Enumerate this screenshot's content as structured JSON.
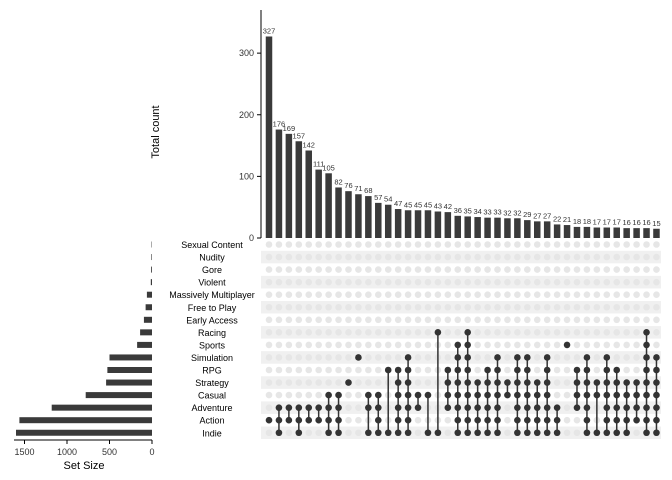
{
  "chart_data": {
    "type": "bar",
    "subtype": "upset",
    "title": "",
    "ylabel": "Total count",
    "xlabel_sets": "Set Size",
    "intersection_yticks": [
      0,
      100,
      200,
      300
    ],
    "intersection_ylim": [
      0,
      370
    ],
    "set_size_xticks": [
      1500,
      1000,
      500,
      0
    ],
    "set_size_xlim": [
      0,
      1600
    ],
    "colors": {
      "bar": "#3a3a3a",
      "dot_on": "#333333",
      "dot_off": "#e6e6e6",
      "stripe": "#f0f0f0",
      "axis": "#000000"
    },
    "sets": [
      {
        "name": "Sexual Content",
        "size": 5
      },
      {
        "name": "Nudity",
        "size": 7
      },
      {
        "name": "Gore",
        "size": 10
      },
      {
        "name": "Violent",
        "size": 14
      },
      {
        "name": "Massively Multiplayer",
        "size": 60
      },
      {
        "name": "Free to Play",
        "size": 75
      },
      {
        "name": "Early Access",
        "size": 95
      },
      {
        "name": "Racing",
        "size": 140
      },
      {
        "name": "Sports",
        "size": 175
      },
      {
        "name": "Simulation",
        "size": 500
      },
      {
        "name": "RPG",
        "size": 525
      },
      {
        "name": "Strategy",
        "size": 540
      },
      {
        "name": "Casual",
        "size": 780
      },
      {
        "name": "Adventure",
        "size": 1180
      },
      {
        "name": "Action",
        "size": 1560
      },
      {
        "name": "Indie",
        "size": 1600
      }
    ],
    "intersections": [
      {
        "value": 327,
        "sets": [
          "Action"
        ]
      },
      {
        "value": 176,
        "sets": [
          "Indie",
          "Action",
          "Adventure"
        ]
      },
      {
        "value": 169,
        "sets": [
          "Action",
          "Adventure"
        ]
      },
      {
        "value": 157,
        "sets": [
          "Indie",
          "Action",
          "Adventure"
        ]
      },
      {
        "value": 142,
        "sets": [
          "Action",
          "Adventure"
        ]
      },
      {
        "value": 111,
        "sets": [
          "Action",
          "Adventure"
        ]
      },
      {
        "value": 105,
        "sets": [
          "Indie",
          "Action",
          "Adventure",
          "Casual"
        ]
      },
      {
        "value": 82,
        "sets": [
          "Indie",
          "Action",
          "Adventure",
          "Casual"
        ]
      },
      {
        "value": 76,
        "sets": [
          "Strategy"
        ]
      },
      {
        "value": 71,
        "sets": [
          "Simulation"
        ]
      },
      {
        "value": 68,
        "sets": [
          "Indie",
          "Adventure",
          "Casual"
        ]
      },
      {
        "value": 57,
        "sets": [
          "Indie",
          "Action",
          "Adventure",
          "Casual"
        ]
      },
      {
        "value": 54,
        "sets": [
          "Indie",
          "RPG"
        ]
      },
      {
        "value": 47,
        "sets": [
          "Indie",
          "Action",
          "Adventure",
          "Casual",
          "Strategy",
          "RPG"
        ]
      },
      {
        "value": 45,
        "sets": [
          "Indie",
          "Action",
          "Adventure",
          "Casual",
          "Strategy",
          "RPG",
          "Simulation"
        ]
      },
      {
        "value": 45,
        "sets": [
          "Casual",
          "Adventure"
        ]
      },
      {
        "value": 45,
        "sets": [
          "Indie",
          "Casual"
        ]
      },
      {
        "value": 43,
        "sets": [
          "Indie",
          "Racing"
        ]
      },
      {
        "value": 42,
        "sets": [
          "Strategy",
          "RPG",
          "Adventure",
          "Casual"
        ]
      },
      {
        "value": 36,
        "sets": [
          "Indie",
          "Action",
          "Adventure",
          "Casual",
          "Strategy",
          "RPG",
          "Simulation",
          "Sports"
        ]
      },
      {
        "value": 35,
        "sets": [
          "Indie",
          "Action",
          "Adventure",
          "Casual",
          "Strategy",
          "RPG",
          "Simulation",
          "Sports",
          "Racing"
        ]
      },
      {
        "value": 34,
        "sets": [
          "Indie",
          "Action",
          "Adventure",
          "Casual",
          "Strategy"
        ]
      },
      {
        "value": 33,
        "sets": [
          "Indie",
          "Action",
          "Adventure",
          "Casual",
          "Strategy",
          "RPG"
        ]
      },
      {
        "value": 33,
        "sets": [
          "Indie",
          "Action",
          "Adventure",
          "Casual",
          "Strategy",
          "RPG",
          "Simulation"
        ]
      },
      {
        "value": 32,
        "sets": [
          "Casual",
          "Strategy"
        ]
      },
      {
        "value": 32,
        "sets": [
          "Indie",
          "Action",
          "Adventure",
          "Casual",
          "Strategy",
          "RPG",
          "Simulation"
        ]
      },
      {
        "value": 29,
        "sets": [
          "Indie",
          "Action",
          "Adventure",
          "Casual",
          "Strategy",
          "RPG",
          "Simulation"
        ]
      },
      {
        "value": 27,
        "sets": [
          "Indie",
          "Action",
          "Adventure",
          "Casual",
          "Strategy"
        ]
      },
      {
        "value": 27,
        "sets": [
          "Indie",
          "Action",
          "Adventure",
          "Casual",
          "Strategy",
          "RPG",
          "Simulation"
        ]
      },
      {
        "value": 22,
        "sets": [
          "Indie",
          "Action",
          "Adventure"
        ]
      },
      {
        "value": 21,
        "sets": [
          "Sports"
        ]
      },
      {
        "value": 18,
        "sets": [
          "Adventure",
          "Casual",
          "Strategy",
          "RPG"
        ]
      },
      {
        "value": 18,
        "sets": [
          "Indie",
          "Action",
          "Adventure",
          "Casual",
          "Strategy",
          "RPG",
          "Simulation"
        ]
      },
      {
        "value": 17,
        "sets": [
          "Indie",
          "Casual",
          "Strategy"
        ]
      },
      {
        "value": 17,
        "sets": [
          "Indie",
          "Action",
          "Adventure",
          "Casual",
          "Strategy",
          "RPG",
          "Simulation"
        ]
      },
      {
        "value": 17,
        "sets": [
          "Indie",
          "Action",
          "Adventure",
          "Casual",
          "Strategy",
          "RPG"
        ]
      },
      {
        "value": 16,
        "sets": [
          "Indie",
          "Action",
          "Adventure",
          "Casual",
          "Strategy"
        ]
      },
      {
        "value": 16,
        "sets": [
          "Action",
          "Adventure",
          "Casual",
          "Strategy"
        ]
      },
      {
        "value": 16,
        "sets": [
          "Indie",
          "Action",
          "Adventure",
          "Casual",
          "Strategy",
          "RPG",
          "Simulation",
          "Sports",
          "Racing"
        ]
      },
      {
        "value": 15,
        "sets": [
          "Indie",
          "Action",
          "Adventure",
          "Casual",
          "Strategy",
          "RPG",
          "Simulation"
        ]
      }
    ]
  }
}
